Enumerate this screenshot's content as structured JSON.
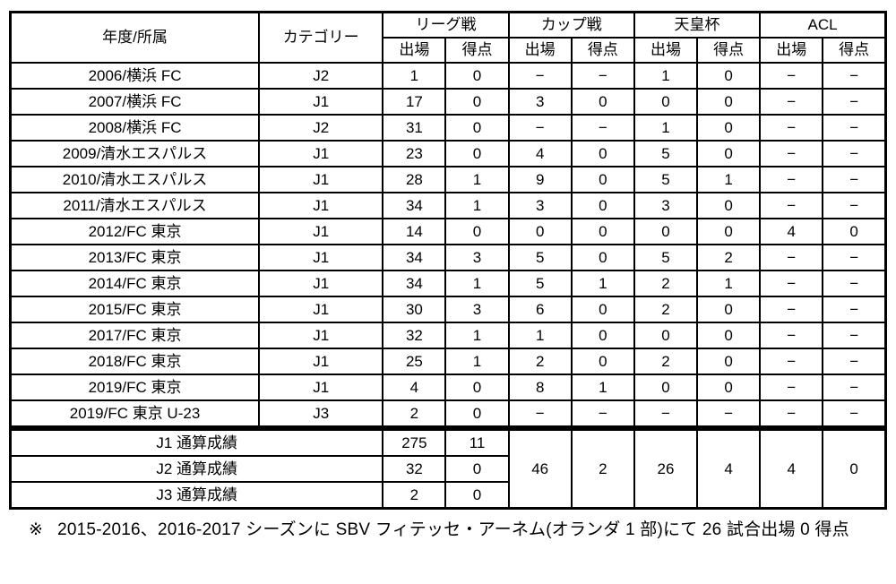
{
  "table": {
    "header": {
      "year_label": "年度/所属",
      "category_label": "カテゴリー",
      "groups": [
        {
          "label": "リーグ戦"
        },
        {
          "label": "カップ戦"
        },
        {
          "label": "天皇杯"
        },
        {
          "label": "ACL"
        }
      ],
      "sub_labels": {
        "apps": "出場",
        "goals": "得点"
      }
    },
    "rows": [
      {
        "year": "2006/横浜 FC",
        "category": "J2",
        "league_apps": "1",
        "league_goals": "0",
        "cup_apps": "−",
        "cup_goals": "−",
        "emperor_apps": "1",
        "emperor_goals": "0",
        "acl_apps": "−",
        "acl_goals": "−"
      },
      {
        "year": "2007/横浜 FC",
        "category": "J1",
        "league_apps": "17",
        "league_goals": "0",
        "cup_apps": "3",
        "cup_goals": "0",
        "emperor_apps": "0",
        "emperor_goals": "0",
        "acl_apps": "−",
        "acl_goals": "−"
      },
      {
        "year": "2008/横浜 FC",
        "category": "J2",
        "league_apps": "31",
        "league_goals": "0",
        "cup_apps": "−",
        "cup_goals": "−",
        "emperor_apps": "1",
        "emperor_goals": "0",
        "acl_apps": "−",
        "acl_goals": "−"
      },
      {
        "year": "2009/清水エスパルス",
        "category": "J1",
        "league_apps": "23",
        "league_goals": "0",
        "cup_apps": "4",
        "cup_goals": "0",
        "emperor_apps": "5",
        "emperor_goals": "0",
        "acl_apps": "−",
        "acl_goals": "−"
      },
      {
        "year": "2010/清水エスパルス",
        "category": "J1",
        "league_apps": "28",
        "league_goals": "1",
        "cup_apps": "9",
        "cup_goals": "0",
        "emperor_apps": "5",
        "emperor_goals": "1",
        "acl_apps": "−",
        "acl_goals": "−"
      },
      {
        "year": "2011/清水エスパルス",
        "category": "J1",
        "league_apps": "34",
        "league_goals": "1",
        "cup_apps": "3",
        "cup_goals": "0",
        "emperor_apps": "3",
        "emperor_goals": "0",
        "acl_apps": "−",
        "acl_goals": "−"
      },
      {
        "year": "2012/FC 東京",
        "category": "J1",
        "league_apps": "14",
        "league_goals": "0",
        "cup_apps": "0",
        "cup_goals": "0",
        "emperor_apps": "0",
        "emperor_goals": "0",
        "acl_apps": "4",
        "acl_goals": "0"
      },
      {
        "year": "2013/FC 東京",
        "category": "J1",
        "league_apps": "34",
        "league_goals": "3",
        "cup_apps": "5",
        "cup_goals": "0",
        "emperor_apps": "5",
        "emperor_goals": "2",
        "acl_apps": "−",
        "acl_goals": "−"
      },
      {
        "year": "2014/FC 東京",
        "category": "J1",
        "league_apps": "34",
        "league_goals": "1",
        "cup_apps": "5",
        "cup_goals": "1",
        "emperor_apps": "2",
        "emperor_goals": "1",
        "acl_apps": "−",
        "acl_goals": "−"
      },
      {
        "year": "2015/FC 東京",
        "category": "J1",
        "league_apps": "30",
        "league_goals": "3",
        "cup_apps": "6",
        "cup_goals": "0",
        "emperor_apps": "2",
        "emperor_goals": "0",
        "acl_apps": "−",
        "acl_goals": "−"
      },
      {
        "year": "2017/FC 東京",
        "category": "J1",
        "league_apps": "32",
        "league_goals": "1",
        "cup_apps": "1",
        "cup_goals": "0",
        "emperor_apps": "0",
        "emperor_goals": "0",
        "acl_apps": "−",
        "acl_goals": "−"
      },
      {
        "year": "2018/FC 東京",
        "category": "J1",
        "league_apps": "25",
        "league_goals": "1",
        "cup_apps": "2",
        "cup_goals": "0",
        "emperor_apps": "2",
        "emperor_goals": "0",
        "acl_apps": "−",
        "acl_goals": "−"
      },
      {
        "year": "2019/FC 東京",
        "category": "J1",
        "league_apps": "4",
        "league_goals": "0",
        "cup_apps": "8",
        "cup_goals": "1",
        "emperor_apps": "0",
        "emperor_goals": "0",
        "acl_apps": "−",
        "acl_goals": "−"
      },
      {
        "year": "2019/FC 東京 U-23",
        "category": "J3",
        "league_apps": "2",
        "league_goals": "0",
        "cup_apps": "−",
        "cup_goals": "−",
        "emperor_apps": "−",
        "emperor_goals": "−",
        "acl_apps": "−",
        "acl_goals": "−"
      }
    ],
    "totals": [
      {
        "label": "J1 通算成績",
        "apps": "275",
        "goals": "11"
      },
      {
        "label": "J2 通算成績",
        "apps": "32",
        "goals": "0"
      },
      {
        "label": "J3 通算成績",
        "apps": "2",
        "goals": "0"
      }
    ],
    "totals_merged": {
      "cup_apps": "46",
      "cup_goals": "2",
      "emperor_apps": "26",
      "emperor_goals": "4",
      "acl_apps": "4",
      "acl_goals": "0"
    }
  },
  "footnote": {
    "marker": "※",
    "text": "2015-2016、2016-2017 シーズンに SBV フィテッセ・アーネム(オランダ 1 部)にて 26 試合出場 0 得点"
  }
}
